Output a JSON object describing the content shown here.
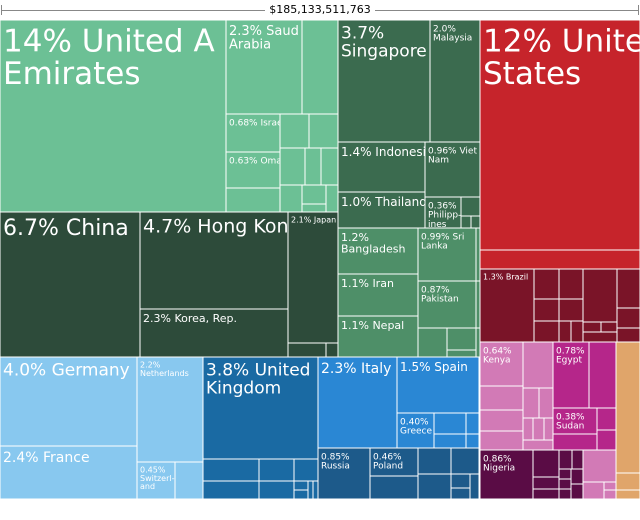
{
  "total_label": "$185,133,511,763",
  "colors": {
    "asia": "#6cc095",
    "asia_dark": "#2d4b3a",
    "asia_mid": "#3b6b4f",
    "asia_light": "#4e8f68",
    "americas": "#c6242b",
    "americas_dark": "#7a1428",
    "europe": "#88c8ef",
    "europe_mid": "#1a6aa3",
    "europe_bright": "#2a87d4",
    "europe_dark": "#1d5a8a",
    "africa_pink": "#d27ab6",
    "africa_magenta": "#b5268a",
    "africa_dark": "#5a0c45",
    "oceania": "#e0a56a"
  },
  "chart_data": {
    "type": "treemap",
    "title": "",
    "total": "$185,133,511,763",
    "items": [
      {
        "label": "United Arab Emirates",
        "share": "14%",
        "group": "asia"
      },
      {
        "label": "Saudi Arabia",
        "share": "2.3%",
        "group": "asia"
      },
      {
        "label": "Israel",
        "share": "0.68%",
        "group": "asia"
      },
      {
        "label": "Oman",
        "share": "0.63%",
        "group": "asia"
      },
      {
        "label": "Singapore",
        "share": "3.7%",
        "group": "asia_mid"
      },
      {
        "label": "Malaysia",
        "share": "2.0%",
        "group": "asia_mid"
      },
      {
        "label": "Indonesia",
        "share": "1.4%",
        "group": "asia_mid"
      },
      {
        "label": "Viet Nam",
        "share": "0.96%",
        "group": "asia_mid"
      },
      {
        "label": "Thailand",
        "share": "1.0%",
        "group": "asia_mid"
      },
      {
        "label": "Philippines",
        "share": "0.36%",
        "group": "asia_mid"
      },
      {
        "label": "China",
        "share": "6.7%",
        "group": "asia_dark"
      },
      {
        "label": "Hong Kong",
        "share": "4.7%",
        "group": "asia_dark"
      },
      {
        "label": "Japan",
        "share": "2.1%",
        "group": "asia_dark"
      },
      {
        "label": "Korea, Rep.",
        "share": "2.3%",
        "group": "asia_dark"
      },
      {
        "label": "Bangladesh",
        "share": "1.2%",
        "group": "asia_light"
      },
      {
        "label": "Sri Lanka",
        "share": "0.99%",
        "group": "asia_light"
      },
      {
        "label": "Iran",
        "share": "1.1%",
        "group": "asia_light"
      },
      {
        "label": "Pakistan",
        "share": "0.87%",
        "group": "asia_light"
      },
      {
        "label": "Nepal",
        "share": "1.1%",
        "group": "asia_light"
      },
      {
        "label": "United States",
        "share": "12%",
        "group": "americas"
      },
      {
        "label": "Brazil",
        "share": "1.3%",
        "group": "americas_dark"
      },
      {
        "label": "Germany",
        "share": "4.0%",
        "group": "europe"
      },
      {
        "label": "Netherlands",
        "share": "2.2%",
        "group": "europe"
      },
      {
        "label": "France",
        "share": "2.4%",
        "group": "europe"
      },
      {
        "label": "Switzerland",
        "share": "0.45%",
        "group": "europe"
      },
      {
        "label": "United Kingdom",
        "share": "3.8%",
        "group": "europe_mid"
      },
      {
        "label": "Italy",
        "share": "2.3%",
        "group": "europe_bright"
      },
      {
        "label": "Spain",
        "share": "1.5%",
        "group": "europe_bright"
      },
      {
        "label": "Greece",
        "share": "0.40%",
        "group": "europe_bright"
      },
      {
        "label": "Russia",
        "share": "0.85%",
        "group": "europe_dark"
      },
      {
        "label": "Poland",
        "share": "0.46%",
        "group": "europe_dark"
      },
      {
        "label": "Kenya",
        "share": "0.64%",
        "group": "africa_pink"
      },
      {
        "label": "Egypt",
        "share": "0.78%",
        "group": "africa_magenta"
      },
      {
        "label": "Sudan",
        "share": "0.38%",
        "group": "africa_magenta"
      },
      {
        "label": "Nigeria",
        "share": "0.86%",
        "group": "africa_dark"
      }
    ]
  }
}
